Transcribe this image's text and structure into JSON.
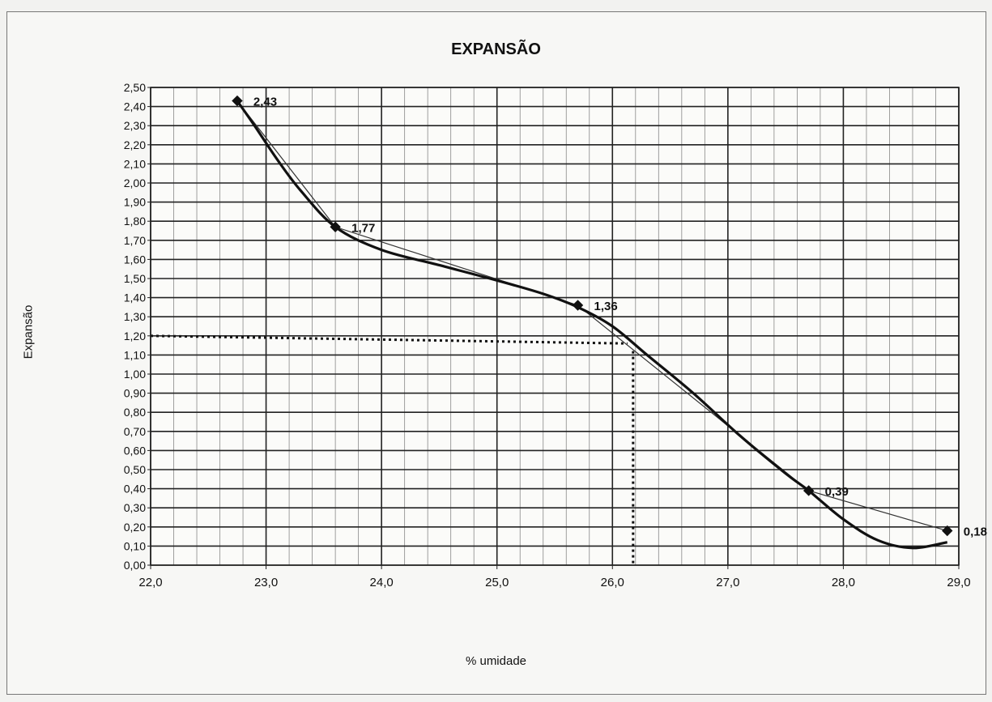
{
  "chart_data": {
    "type": "line",
    "title": "EXPANSÃO",
    "xlabel": "% umidade",
    "ylabel": "Expansão",
    "xlim": [
      22.0,
      29.0
    ],
    "ylim": [
      0.0,
      2.5
    ],
    "x_ticks": [
      "22,0",
      "23,0",
      "24,0",
      "25,0",
      "26,0",
      "27,0",
      "28,0",
      "29,0"
    ],
    "y_ticks": [
      "0,00",
      "0,10",
      "0,20",
      "0,30",
      "0,40",
      "0,50",
      "0,60",
      "0,70",
      "0,80",
      "0,90",
      "1,00",
      "1,10",
      "1,20",
      "1,30",
      "1,40",
      "1,50",
      "1,60",
      "1,70",
      "1,80",
      "1,90",
      "2,00",
      "2,10",
      "2,20",
      "2,30",
      "2,40",
      "2,50"
    ],
    "grid": true,
    "series": [
      {
        "points": [
          {
            "x": 22.75,
            "y": 2.43,
            "label": "2,43"
          },
          {
            "x": 23.6,
            "y": 1.77,
            "label": "1,77"
          },
          {
            "x": 25.7,
            "y": 1.36,
            "label": "1,36"
          },
          {
            "x": 27.7,
            "y": 0.39,
            "label": "0,39"
          },
          {
            "x": 28.9,
            "y": 0.18,
            "label": "0,18"
          }
        ]
      }
    ],
    "trendline": [
      [
        22.75,
        2.43
      ],
      [
        22.9,
        2.3
      ],
      [
        23.1,
        2.12
      ],
      [
        23.3,
        1.96
      ],
      [
        23.6,
        1.77
      ],
      [
        24.0,
        1.65
      ],
      [
        24.5,
        1.57
      ],
      [
        25.0,
        1.49
      ],
      [
        25.4,
        1.42
      ],
      [
        25.7,
        1.35
      ],
      [
        26.0,
        1.25
      ],
      [
        26.3,
        1.1
      ],
      [
        26.7,
        0.9
      ],
      [
        27.1,
        0.68
      ],
      [
        27.5,
        0.48
      ],
      [
        27.7,
        0.39
      ],
      [
        28.0,
        0.24
      ],
      [
        28.3,
        0.13
      ],
      [
        28.6,
        0.09
      ],
      [
        28.9,
        0.12
      ]
    ],
    "reference": {
      "x": 26.2,
      "y": 1.2
    }
  }
}
